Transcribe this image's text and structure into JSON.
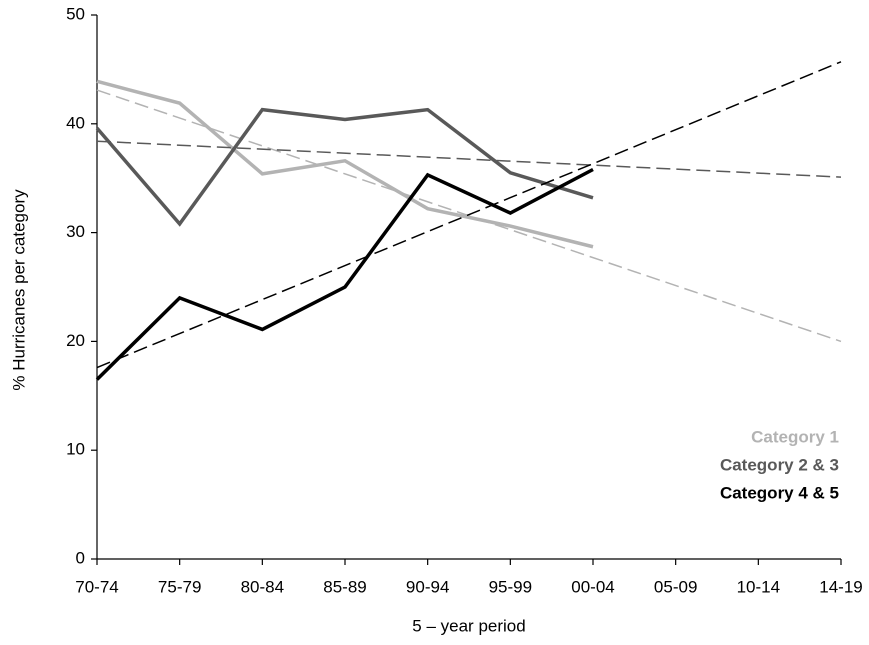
{
  "chart_data": {
    "type": "line",
    "categories": [
      "70-74",
      "75-79",
      "80-84",
      "85-89",
      "90-94",
      "95-99",
      "00-04",
      "05-09",
      "10-14",
      "14-19"
    ],
    "series": [
      {
        "name": "Category 1",
        "color": "#b3b3b3",
        "values": [
          43.9,
          41.9,
          35.4,
          36.6,
          32.2,
          30.6,
          28.7,
          null,
          null,
          null
        ],
        "trend": [
          43.1,
          20.0
        ]
      },
      {
        "name": "Category 2 & 3",
        "color": "#595959",
        "values": [
          39.6,
          30.8,
          41.3,
          40.4,
          41.3,
          35.5,
          33.2,
          null,
          null,
          null
        ],
        "trend": [
          38.4,
          35.1
        ]
      },
      {
        "name": "Category 4 & 5",
        "color": "#000000",
        "values": [
          16.5,
          24.0,
          21.1,
          25.0,
          35.3,
          31.8,
          35.8,
          null,
          null,
          null
        ],
        "trend": [
          17.6,
          45.7
        ]
      }
    ],
    "xlabel": "5 – year period",
    "ylabel": "% Hurricanes per category",
    "ylim": [
      0,
      50
    ],
    "yticks": [
      0,
      10,
      20,
      30,
      40,
      50
    ],
    "legend": "lower right",
    "grid": false
  }
}
